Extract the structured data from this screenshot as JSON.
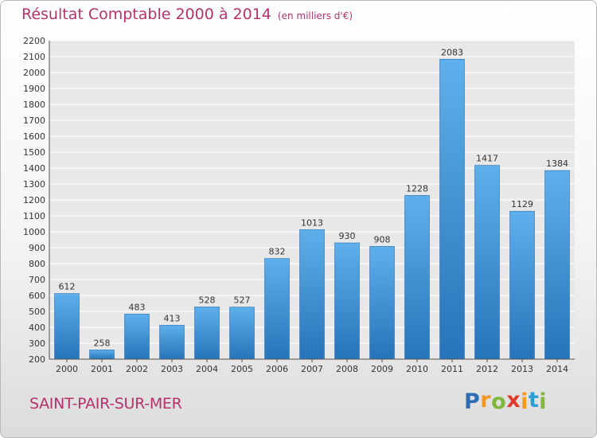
{
  "chart_data": {
    "type": "bar",
    "title": "Résultat Comptable 2000 à 2014",
    "subtitle": "(en milliers d'€)",
    "categories": [
      "2000",
      "2001",
      "2002",
      "2003",
      "2004",
      "2005",
      "2006",
      "2007",
      "2008",
      "2009",
      "2010",
      "2011",
      "2012",
      "2013",
      "2014"
    ],
    "values": [
      612,
      258,
      483,
      413,
      528,
      527,
      832,
      1013,
      930,
      908,
      1228,
      2083,
      1417,
      1129,
      1384
    ],
    "ylim": [
      200,
      2200
    ],
    "ytick_step": 100,
    "grid": true,
    "bar_color": "#3f93d6"
  },
  "footer": {
    "commune": "SAINT-PAIR-SUR-MER",
    "logo_letters": [
      {
        "ch": "P",
        "color": "#2f6db3"
      },
      {
        "ch": "r",
        "color": "#f39a1e"
      },
      {
        "ch": "o",
        "color": "#7fb83a"
      },
      {
        "ch": "x",
        "color": "#e23b2d"
      },
      {
        "ch": "i",
        "color": "#f39a1e"
      },
      {
        "ch": "t",
        "color": "#2a9fd6"
      },
      {
        "ch": "i",
        "color": "#7fb83a"
      }
    ]
  }
}
